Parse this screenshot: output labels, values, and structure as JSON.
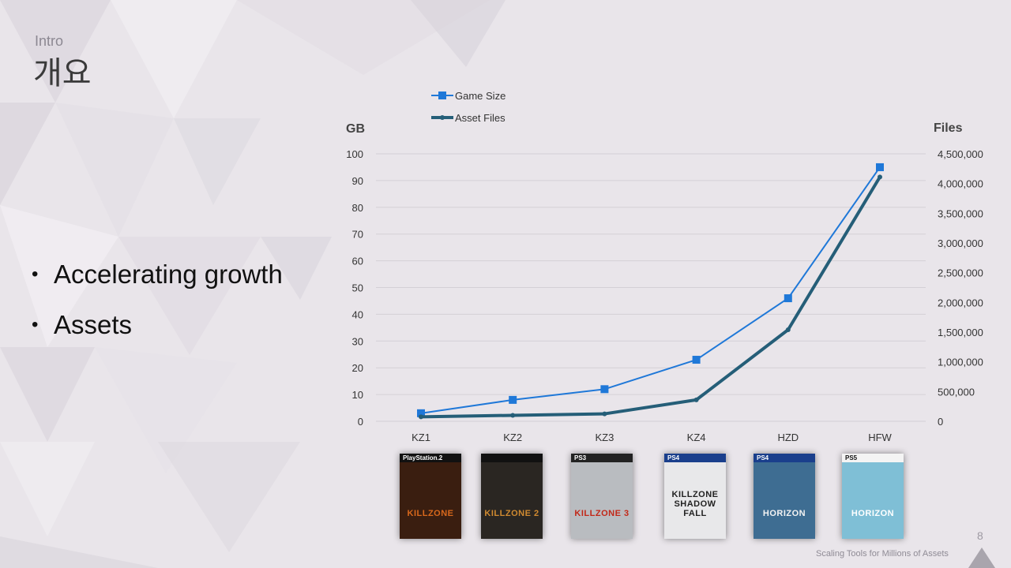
{
  "slide": {
    "subtitle": "Intro",
    "title": "개요",
    "bullets": [
      "Accelerating growth",
      "Assets"
    ],
    "footer": "Scaling Tools for Millions of Assets",
    "page_number": "8"
  },
  "chart_data": {
    "type": "line",
    "categories": [
      "KZ1",
      "KZ2",
      "KZ3",
      "KZ4",
      "HZD",
      "HFW"
    ],
    "series": [
      {
        "name": "Game Size",
        "axis": "left",
        "color": "#1f78d8",
        "marker": "square",
        "values": [
          3,
          8,
          12,
          23,
          46,
          95
        ]
      },
      {
        "name": "Asset Files",
        "axis": "right",
        "color": "#255e78",
        "marker": "dot",
        "values": [
          75000,
          100000,
          125000,
          360000,
          1540000,
          4110000
        ]
      }
    ],
    "ylabel": "GB",
    "y2label": "Files",
    "ylim": [
      0,
      100
    ],
    "y2lim": [
      0,
      4500000
    ],
    "yticks": [
      "0",
      "10",
      "20",
      "30",
      "40",
      "50",
      "60",
      "70",
      "80",
      "90",
      "100"
    ],
    "y2ticks": [
      "0",
      "500,000",
      "1,000,000",
      "1,500,000",
      "2,000,000",
      "2,500,000",
      "3,000,000",
      "3,500,000",
      "4,000,000",
      "4,500,000"
    ],
    "grid": true,
    "legend_position": "top-left"
  },
  "covers": [
    {
      "platform": "PlayStation.2",
      "name": "KILLZONE",
      "bg": "#3a1e10",
      "band": "#111111",
      "text": "#d8681c"
    },
    {
      "platform": "",
      "name": "KILLZONE 2",
      "bg": "#2a2622",
      "band": "#111111",
      "text": "#d08a30"
    },
    {
      "platform": "PS3",
      "name": "KILLZONE 3",
      "bg": "#b9bcc0",
      "band": "#222222",
      "text": "#c22818"
    },
    {
      "platform": "PS4",
      "name": "KILLZONE SHADOW FALL",
      "bg": "#e8e8ea",
      "band": "#1a3f8c",
      "text": "#222222"
    },
    {
      "platform": "PS4",
      "name": "HORIZON",
      "bg": "#3e6d92",
      "band": "#1a3f8c",
      "text": "#f3f3f3"
    },
    {
      "platform": "PS5",
      "name": "HORIZON",
      "bg": "#7fbfd6",
      "band": "#f4f4f4",
      "text": "#ffffff"
    }
  ]
}
